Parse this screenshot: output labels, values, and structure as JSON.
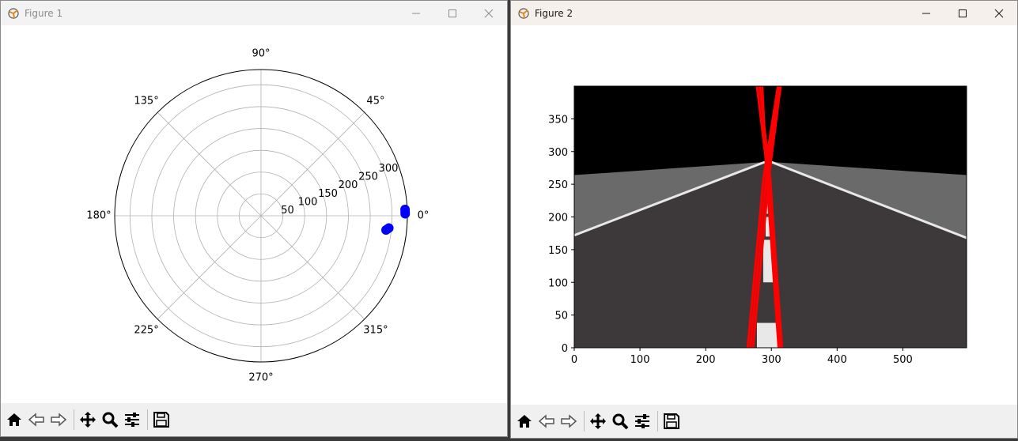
{
  "windows": [
    {
      "title": "Figure 1",
      "chart_data": {
        "type": "scatter",
        "projection": "polar",
        "angle_tick_labels": [
          "0°",
          "45°",
          "90°",
          "135°",
          "180°",
          "225°",
          "270°",
          "315°"
        ],
        "radial_tick_labels": [
          "50",
          "100",
          "150",
          "200",
          "250",
          "300"
        ],
        "rmax": 335,
        "grid": true,
        "series": [
          {
            "color": "#0000ff",
            "points": [
              {
                "theta_deg": 0.8,
                "r": 330
              },
              {
                "theta_deg": 2.5,
                "r": 330
              },
              {
                "theta_deg": 1.5,
                "r": 330
              },
              {
                "theta_deg": -6.5,
                "r": 288
              },
              {
                "theta_deg": -5.5,
                "r": 294
              },
              {
                "theta_deg": -6.0,
                "r": 291
              }
            ]
          }
        ]
      }
    },
    {
      "title": "Figure 2",
      "chart_data": {
        "type": "line",
        "image_background": "road-scene",
        "xlim": [
          0,
          597
        ],
        "ylim": [
          0,
          400
        ],
        "x_ticks": [
          0,
          100,
          200,
          300,
          400,
          500
        ],
        "y_ticks": [
          0,
          50,
          100,
          150,
          200,
          250,
          300,
          350
        ],
        "grid": false,
        "colors": {
          "sky": "#000000",
          "terrain": "#6a6a6a",
          "road": "#3d393a",
          "lane": "#e8e8e8",
          "lines": "#ff0000"
        },
        "series": [
          {
            "x": [
              264,
              288,
              310,
              322
            ],
            "y": [
              0,
              260,
              400,
              430
            ]
          },
          {
            "x": [
              268,
              292,
              312
            ],
            "y": [
              0,
              260,
              400
            ]
          },
          {
            "x": [
              272,
              296,
              314
            ],
            "y": [
              0,
              260,
              400
            ]
          },
          {
            "x": [
              313,
              295,
              278,
              274
            ],
            "y": [
              0,
              260,
              400,
              430
            ]
          },
          {
            "x": [
              316,
              298,
              282
            ],
            "y": [
              0,
              260,
              400
            ]
          },
          {
            "x": [
              311,
              293,
              286
            ],
            "y": [
              0,
              260,
              400
            ]
          }
        ]
      }
    }
  ],
  "toolbar_icons": [
    "home-icon",
    "back-icon",
    "forward-icon",
    "pan-icon",
    "zoom-icon",
    "configure-icon",
    "save-icon"
  ]
}
